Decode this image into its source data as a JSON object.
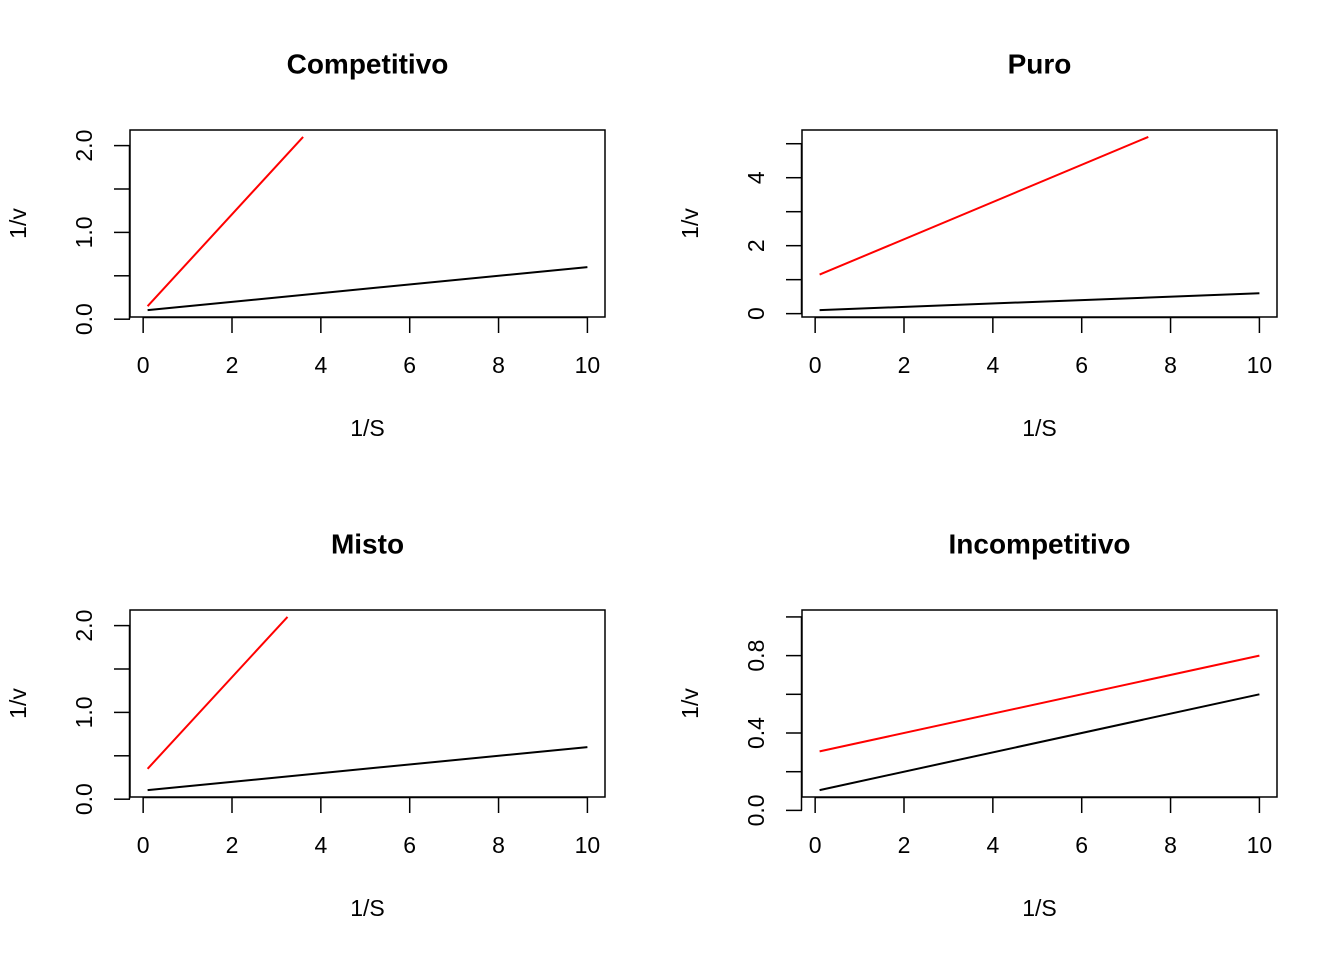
{
  "chart_data": [
    {
      "type": "line",
      "title": "Competitivo",
      "xlabel": "1/S",
      "ylabel": "1/v",
      "xlim": [
        0,
        10
      ],
      "ylim": [
        0,
        2.0
      ],
      "x_ticks": [
        "0",
        "2",
        "4",
        "6",
        "8",
        "10"
      ],
      "y_ticks": [
        "0.0",
        "1.0",
        "2.0"
      ],
      "series": [
        {
          "color": "#000000",
          "x": [
            0.1,
            10
          ],
          "y": [
            0.105,
            0.6
          ]
        },
        {
          "color": "#ff0000",
          "x": [
            0.1,
            3.6
          ],
          "y": [
            0.15,
            2.1
          ]
        }
      ]
    },
    {
      "type": "line",
      "title": "Puro",
      "xlabel": "1/S",
      "ylabel": "1/v",
      "xlim": [
        0,
        10
      ],
      "ylim": [
        0,
        5
      ],
      "x_ticks": [
        "0",
        "2",
        "4",
        "6",
        "8",
        "10"
      ],
      "y_ticks": [
        "0",
        "2",
        "4"
      ],
      "series": [
        {
          "color": "#000000",
          "x": [
            0.1,
            10
          ],
          "y": [
            0.105,
            0.6
          ]
        },
        {
          "color": "#ff0000",
          "x": [
            0.1,
            7.5
          ],
          "y": [
            1.15,
            5.2
          ]
        }
      ]
    },
    {
      "type": "line",
      "title": "Misto",
      "xlabel": "1/S",
      "ylabel": "1/v",
      "xlim": [
        0,
        10
      ],
      "ylim": [
        0,
        2.0
      ],
      "x_ticks": [
        "0",
        "2",
        "4",
        "6",
        "8",
        "10"
      ],
      "y_ticks": [
        "0.0",
        "1.0",
        "2.0"
      ],
      "series": [
        {
          "color": "#000000",
          "x": [
            0.1,
            10
          ],
          "y": [
            0.105,
            0.6
          ]
        },
        {
          "color": "#ff0000",
          "x": [
            0.1,
            3.25
          ],
          "y": [
            0.35,
            2.1
          ]
        }
      ]
    },
    {
      "type": "line",
      "title": "Incompetitivo",
      "xlabel": "1/S",
      "ylabel": "1/v",
      "xlim": [
        0,
        10
      ],
      "ylim": [
        0,
        1.0
      ],
      "x_ticks": [
        "0",
        "2",
        "4",
        "6",
        "8",
        "10"
      ],
      "y_ticks": [
        "0.0",
        "0.4",
        "0.8"
      ],
      "series": [
        {
          "color": "#000000",
          "x": [
            0.1,
            10
          ],
          "y": [
            0.105,
            0.6
          ]
        },
        {
          "color": "#ff0000",
          "x": [
            0.1,
            10
          ],
          "y": [
            0.305,
            0.8
          ]
        }
      ]
    }
  ]
}
